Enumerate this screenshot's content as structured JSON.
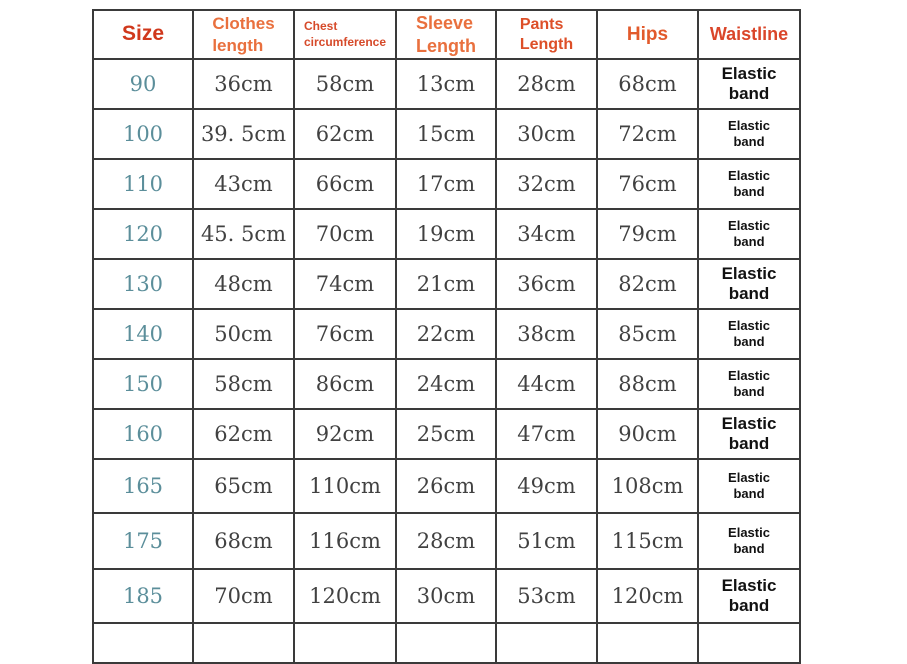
{
  "page": {
    "background": "#ffffff",
    "border_color": "#3a3a3a"
  },
  "colors": {
    "size_value_teal": "#5b8e9a",
    "measurement_gray": "#414141",
    "elastic_black": "#121212",
    "header_accent_red": "#d0381c",
    "header_accent_orange": "#e9703e"
  },
  "chart_data": {
    "type": "table",
    "title": "Garment size chart",
    "columns": [
      {
        "key": "size",
        "label": "Size",
        "display_label": "Size",
        "color": "#d0381c"
      },
      {
        "key": "clothes_length",
        "label": "Clothes length",
        "display_label": "Clothes\nlength",
        "color": "#e9703e"
      },
      {
        "key": "chest_circumference",
        "label": "Chest circumference",
        "display_label": "Chest\ncircumference",
        "color": "#d64a2a"
      },
      {
        "key": "sleeve_length",
        "label": "Sleeve Length",
        "display_label": "Sleeve\nLength",
        "color": "#e9703e"
      },
      {
        "key": "pants_length",
        "label": "Pants Length",
        "display_label": "Pants\nLength",
        "color": "#dd4f28"
      },
      {
        "key": "hips",
        "label": "Hips",
        "display_label": "Hips",
        "color": "#e25a2c"
      },
      {
        "key": "waistline",
        "label": "Waistline",
        "display_label": "Waistline",
        "color": "#da462a"
      }
    ],
    "rows": [
      {
        "size": "90",
        "clothes_length": "36cm",
        "chest_circumference": "58cm",
        "sleeve_length": "13cm",
        "pants_length": "28cm",
        "hips": "68cm",
        "waistline": "Elastic\nband"
      },
      {
        "size": "100",
        "clothes_length": "39. 5cm",
        "chest_circumference": "62cm",
        "sleeve_length": "15cm",
        "pants_length": "30cm",
        "hips": "72cm",
        "waistline": "Elastic\nband"
      },
      {
        "size": "110",
        "clothes_length": "43cm",
        "chest_circumference": "66cm",
        "sleeve_length": "17cm",
        "pants_length": "32cm",
        "hips": "76cm",
        "waistline": "Elastic\nband"
      },
      {
        "size": "120",
        "clothes_length": "45. 5cm",
        "chest_circumference": "70cm",
        "sleeve_length": "19cm",
        "pants_length": "34cm",
        "hips": "79cm",
        "waistline": "Elastic\nband"
      },
      {
        "size": "130",
        "clothes_length": "48cm",
        "chest_circumference": "74cm",
        "sleeve_length": "21cm",
        "pants_length": "36cm",
        "hips": "82cm",
        "waistline": "Elastic\nband"
      },
      {
        "size": "140",
        "clothes_length": "50cm",
        "chest_circumference": "76cm",
        "sleeve_length": "22cm",
        "pants_length": "38cm",
        "hips": "85cm",
        "waistline": "Elastic\nband"
      },
      {
        "size": "150",
        "clothes_length": "58cm",
        "chest_circumference": "86cm",
        "sleeve_length": "24cm",
        "pants_length": "44cm",
        "hips": "88cm",
        "waistline": "Elastic\nband"
      },
      {
        "size": "160",
        "clothes_length": "62cm",
        "chest_circumference": "92cm",
        "sleeve_length": "25cm",
        "pants_length": "47cm",
        "hips": "90cm",
        "waistline": "Elastic\nband"
      },
      {
        "size": "165",
        "clothes_length": "65cm",
        "chest_circumference": "110cm",
        "sleeve_length": "26cm",
        "pants_length": "49cm",
        "hips": "108cm",
        "waistline": "Elastic\nband"
      },
      {
        "size": "175",
        "clothes_length": "68cm",
        "chest_circumference": "116cm",
        "sleeve_length": "28cm",
        "pants_length": "51cm",
        "hips": "115cm",
        "waistline": "Elastic\nband"
      },
      {
        "size": "185",
        "clothes_length": "70cm",
        "chest_circumference": "120cm",
        "sleeve_length": "30cm",
        "pants_length": "53cm",
        "hips": "120cm",
        "waistline": "Elastic\nband"
      }
    ]
  }
}
